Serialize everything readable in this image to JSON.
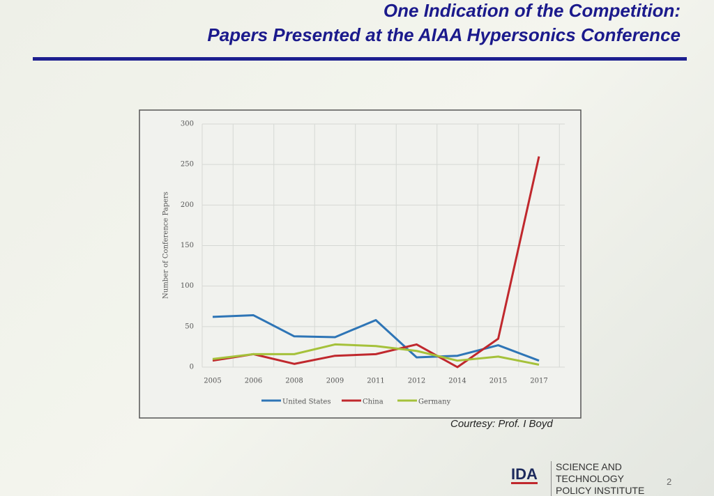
{
  "slide": {
    "title": [
      "One Indication of the Competition:",
      "Papers Presented at the AIAA Hypersonics Conference"
    ],
    "courtesy": "Courtesy: Prof. I Boyd",
    "logo": "IDA",
    "institute": [
      "SCIENCE AND",
      "TECHNOLOGY",
      "POLICY INSTITUTE"
    ],
    "page_number": "2"
  },
  "chart_data": {
    "type": "line",
    "y_label": "Number of Conference Papers",
    "categories": [
      "2005",
      "2006",
      "2008",
      "2009",
      "2011",
      "2012",
      "2014",
      "2015",
      "2017"
    ],
    "series": [
      {
        "name": "United States",
        "color": "#2e75b6",
        "values": [
          62,
          64,
          38,
          37,
          58,
          12,
          14,
          27,
          8
        ]
      },
      {
        "name": "China",
        "color": "#c0282d",
        "values": [
          8,
          16,
          4,
          14,
          16,
          28,
          0,
          35,
          260
        ]
      },
      {
        "name": "Germany",
        "color": "#a5c13a",
        "values": [
          10,
          16,
          16,
          28,
          26,
          20,
          8,
          13,
          3
        ]
      }
    ],
    "ylim": [
      0,
      300
    ],
    "yticks": [
      0,
      50,
      100,
      150,
      200,
      250,
      300
    ],
    "grid": true
  }
}
